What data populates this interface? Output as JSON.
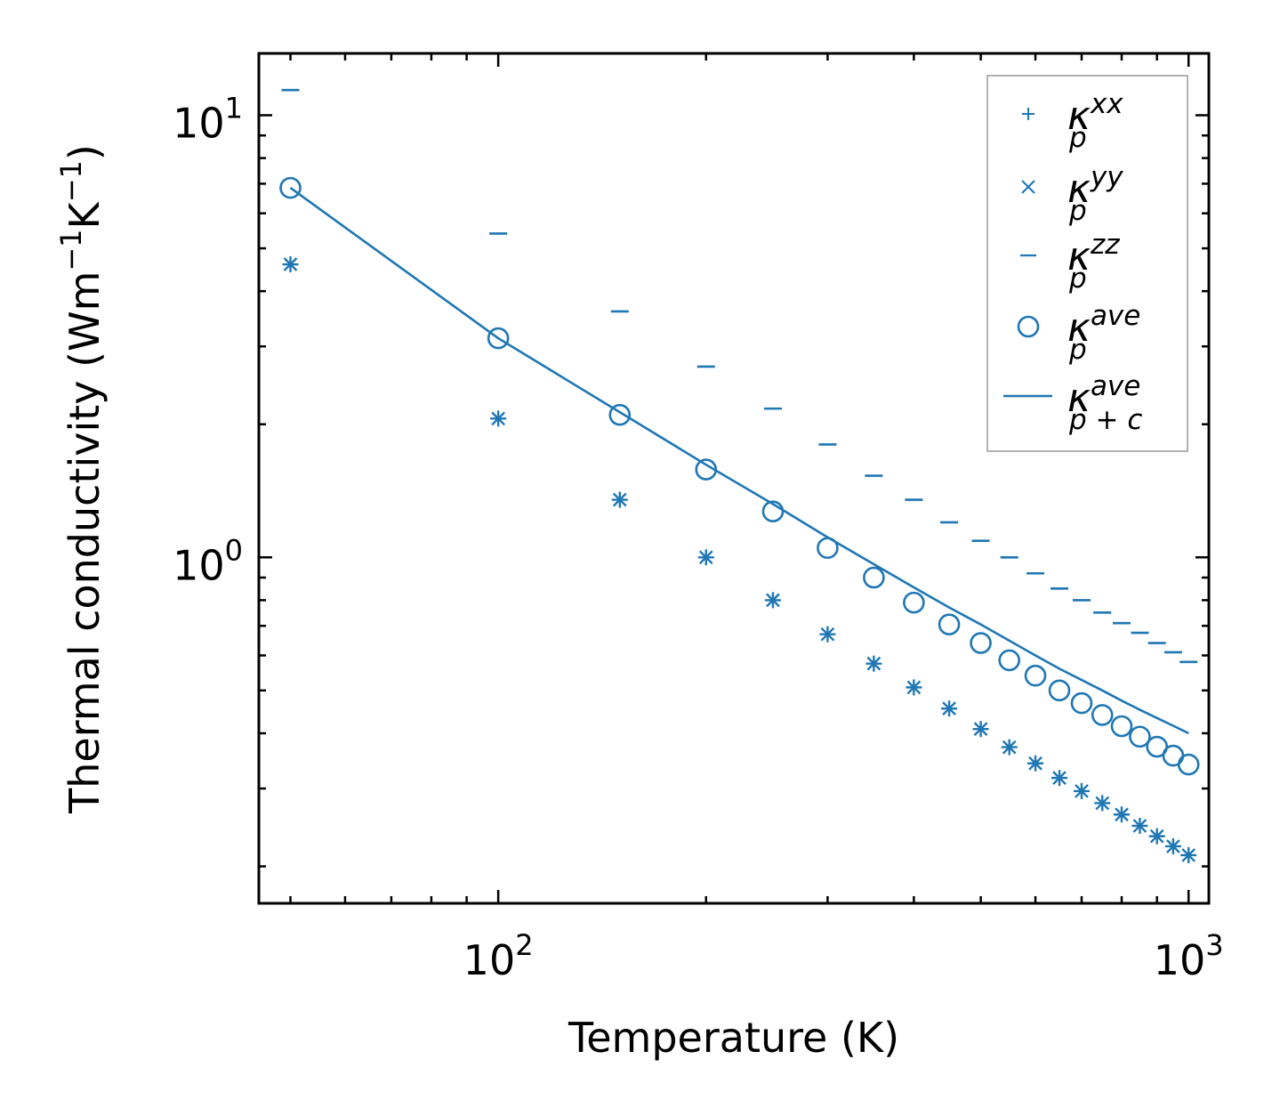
{
  "chart_data": {
    "type": "scatter",
    "scale": {
      "x": "log",
      "y": "log"
    },
    "xlabel": "Temperature (K)",
    "ylabel": {
      "main": "Thermal conductivity (Wm",
      "sup1": "−1",
      "mid": "K",
      "sup2": "−1",
      "end": ")"
    },
    "xlim": [
      45,
      1070
    ],
    "ylim": [
      0.165,
      13.8
    ],
    "x_ticks": [
      {
        "base": "10",
        "exp": "2",
        "value": 100
      },
      {
        "base": "10",
        "exp": "3",
        "value": 1000
      }
    ],
    "y_ticks": [
      {
        "base": "10",
        "exp": "0",
        "value": 1
      },
      {
        "base": "10",
        "exp": "1",
        "value": 10
      }
    ],
    "color": "#1f77b4",
    "legend": {
      "position": "top-right",
      "entries": [
        {
          "key": "xx",
          "base": "κ",
          "sup": "xx",
          "sub": "p",
          "marker": "plus"
        },
        {
          "key": "yy",
          "base": "κ",
          "sup": "yy",
          "sub": "p",
          "marker": "x"
        },
        {
          "key": "zz",
          "base": "κ",
          "sup": "zz",
          "sub": "p",
          "marker": "hline"
        },
        {
          "key": "ave",
          "base": "κ",
          "sup": "ave",
          "sub": "p",
          "marker": "circle"
        },
        {
          "key": "ave_pc",
          "base": "κ",
          "sup": "ave",
          "sub": "p + c",
          "marker": "line"
        }
      ]
    },
    "x": [
      50,
      100,
      150,
      200,
      250,
      300,
      350,
      400,
      450,
      500,
      550,
      600,
      650,
      700,
      750,
      800,
      850,
      900,
      950,
      1000
    ],
    "series": [
      {
        "name": "kappa_p_xx",
        "marker": "plus",
        "values": [
          4.6,
          2.06,
          1.35,
          1.0,
          0.8,
          0.67,
          0.575,
          0.508,
          0.455,
          0.409,
          0.372,
          0.342,
          0.317,
          0.296,
          0.278,
          0.262,
          0.247,
          0.234,
          0.222,
          0.212
        ]
      },
      {
        "name": "kappa_p_yy",
        "marker": "x",
        "values": [
          4.6,
          2.06,
          1.35,
          1.0,
          0.8,
          0.67,
          0.575,
          0.508,
          0.455,
          0.409,
          0.372,
          0.342,
          0.317,
          0.296,
          0.278,
          0.262,
          0.247,
          0.234,
          0.222,
          0.212
        ]
      },
      {
        "name": "kappa_p_zz",
        "marker": "hline",
        "values": [
          11.4,
          5.4,
          3.6,
          2.7,
          2.17,
          1.8,
          1.53,
          1.35,
          1.2,
          1.09,
          1.0,
          0.92,
          0.85,
          0.8,
          0.75,
          0.71,
          0.675,
          0.64,
          0.61,
          0.58
        ]
      },
      {
        "name": "kappa_p_ave",
        "marker": "circle",
        "values": [
          6.85,
          3.13,
          2.1,
          1.58,
          1.27,
          1.05,
          0.9,
          0.79,
          0.705,
          0.64,
          0.585,
          0.54,
          0.5,
          0.468,
          0.44,
          0.415,
          0.393,
          0.373,
          0.356,
          0.34
        ]
      },
      {
        "name": "kappa_p_c_ave",
        "marker": "line",
        "values": [
          6.85,
          3.13,
          2.13,
          1.62,
          1.32,
          1.11,
          0.965,
          0.855,
          0.77,
          0.705,
          0.648,
          0.6,
          0.56,
          0.528,
          0.5,
          0.474,
          0.452,
          0.433,
          0.416,
          0.4
        ]
      }
    ]
  }
}
